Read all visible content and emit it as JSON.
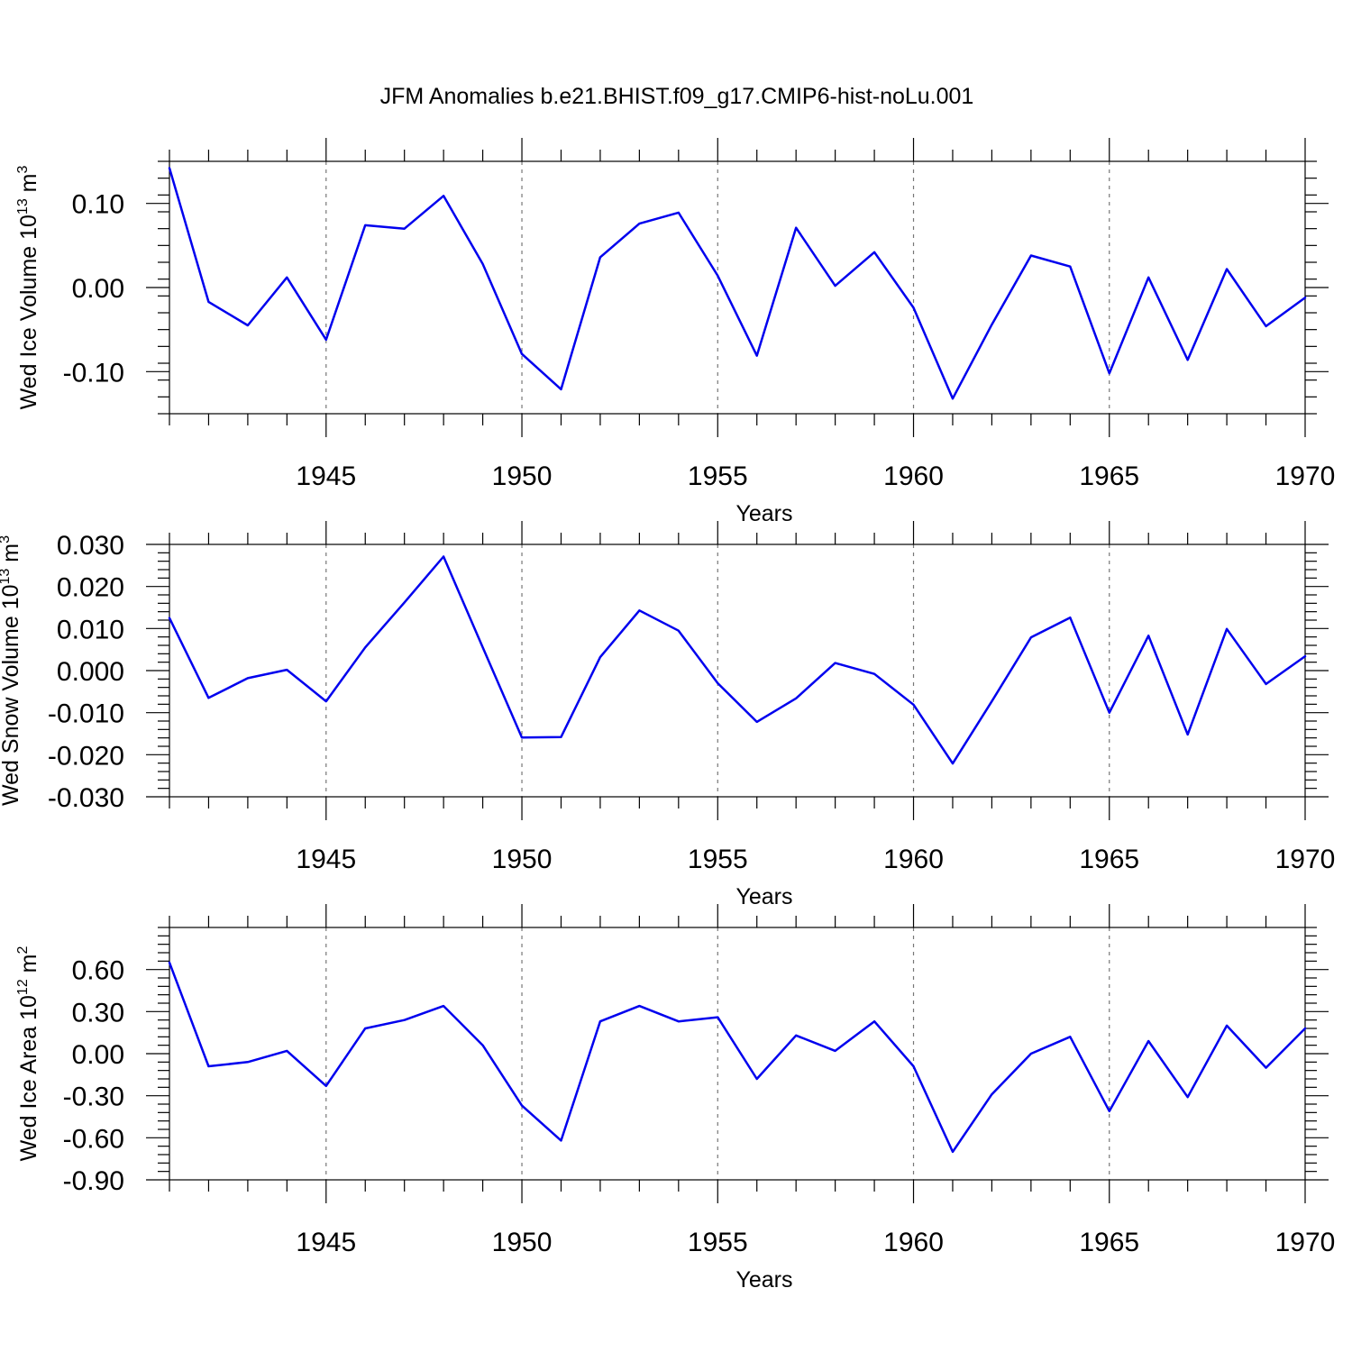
{
  "figure": {
    "title": "JFM Anomalies b.e21.BHIST.f09_g17.CMIP6-hist-noLu.001",
    "line_color": "#0000ee"
  },
  "chart_data": [
    {
      "type": "line",
      "title": "",
      "xlabel": "Years",
      "ylabel": {
        "base": "Wed Ice Volume 10",
        "exp": "13",
        "unit": " m",
        "unit_exp": "3"
      },
      "xlim": [
        1941,
        1970
      ],
      "ylim": [
        -0.15,
        0.15
      ],
      "x_ticks": [
        1945,
        1950,
        1955,
        1960,
        1965,
        1970
      ],
      "y_ticks": [
        -0.1,
        0.0,
        0.1
      ],
      "y_tick_labels": [
        "-0.10",
        "0.00",
        "0.10"
      ],
      "y_minor_step": 0.02,
      "grid": "dashed vertical lines at major x ticks",
      "series": [
        {
          "x": [
            1941,
            1942,
            1943,
            1944,
            1945,
            1946,
            1947,
            1948,
            1949,
            1950,
            1951,
            1952,
            1953,
            1954,
            1955,
            1956,
            1957,
            1958,
            1959,
            1960,
            1961,
            1962,
            1963,
            1964,
            1965,
            1966,
            1967,
            1968,
            1969,
            1970
          ],
          "values": [
            0.142,
            -0.017,
            -0.045,
            0.012,
            -0.062,
            0.074,
            0.07,
            0.109,
            0.028,
            -0.079,
            -0.121,
            0.036,
            0.076,
            0.089,
            0.014,
            -0.081,
            0.071,
            0.002,
            0.042,
            -0.024,
            -0.132,
            -0.044,
            0.038,
            0.025,
            -0.102,
            0.012,
            -0.086,
            0.022,
            -0.046,
            -0.012
          ]
        }
      ]
    },
    {
      "type": "line",
      "title": "",
      "xlabel": "Years",
      "ylabel": {
        "base": "Wed Snow Volume 10",
        "exp": "13",
        "unit": " m",
        "unit_exp": "3"
      },
      "xlim": [
        1941,
        1970
      ],
      "ylim": [
        -0.03,
        0.03
      ],
      "x_ticks": [
        1945,
        1950,
        1955,
        1960,
        1965,
        1970
      ],
      "y_ticks": [
        -0.03,
        -0.02,
        -0.01,
        0.0,
        0.01,
        0.02,
        0.03
      ],
      "y_tick_labels": [
        "-0.030",
        "-0.020",
        "-0.010",
        "0.000",
        "0.010",
        "0.020",
        "0.030"
      ],
      "y_minor_step": 0.002,
      "grid": "dashed vertical lines at major x ticks",
      "series": [
        {
          "x": [
            1941,
            1942,
            1943,
            1944,
            1945,
            1946,
            1947,
            1948,
            1949,
            1950,
            1951,
            1952,
            1953,
            1954,
            1955,
            1956,
            1957,
            1958,
            1959,
            1960,
            1961,
            1962,
            1963,
            1964,
            1965,
            1966,
            1967,
            1968,
            1969,
            1970
          ],
          "values": [
            0.0125,
            -0.0065,
            -0.0018,
            0.0002,
            -0.0073,
            0.0055,
            0.0162,
            0.0271,
            0.0055,
            -0.0159,
            -0.0158,
            0.0032,
            0.0143,
            0.0095,
            -0.003,
            -0.0122,
            -0.0066,
            0.0018,
            -0.0008,
            -0.0081,
            -0.0221,
            -0.0073,
            0.0079,
            0.0126,
            -0.01,
            0.0083,
            -0.0152,
            0.0099,
            -0.0032,
            0.0034
          ]
        }
      ]
    },
    {
      "type": "line",
      "title": "",
      "xlabel": "Years",
      "ylabel": {
        "base": "Wed Ice Area 10",
        "exp": "12",
        "unit": " m",
        "unit_exp": "2"
      },
      "xlim": [
        1941,
        1970
      ],
      "ylim": [
        -0.9,
        0.9
      ],
      "x_ticks": [
        1945,
        1950,
        1955,
        1960,
        1965,
        1970
      ],
      "y_ticks": [
        -0.9,
        -0.6,
        -0.3,
        0.0,
        0.3,
        0.6
      ],
      "y_tick_labels": [
        "-0.90",
        "-0.60",
        "-0.30",
        "0.00",
        "0.30",
        "0.60"
      ],
      "y_minor_step": 0.06,
      "grid": "dashed vertical lines at major x ticks",
      "series": [
        {
          "x": [
            1941,
            1942,
            1943,
            1944,
            1945,
            1946,
            1947,
            1948,
            1949,
            1950,
            1951,
            1952,
            1953,
            1954,
            1955,
            1956,
            1957,
            1958,
            1959,
            1960,
            1961,
            1962,
            1963,
            1964,
            1965,
            1966,
            1967,
            1968,
            1969,
            1970
          ],
          "values": [
            0.65,
            -0.09,
            -0.06,
            0.02,
            -0.23,
            0.18,
            0.24,
            0.34,
            0.06,
            -0.37,
            -0.62,
            0.23,
            0.34,
            0.23,
            0.26,
            -0.18,
            0.13,
            0.02,
            0.23,
            -0.09,
            -0.7,
            -0.29,
            0.0,
            0.12,
            -0.41,
            0.09,
            -0.31,
            0.2,
            -0.1,
            0.18
          ]
        }
      ]
    }
  ]
}
